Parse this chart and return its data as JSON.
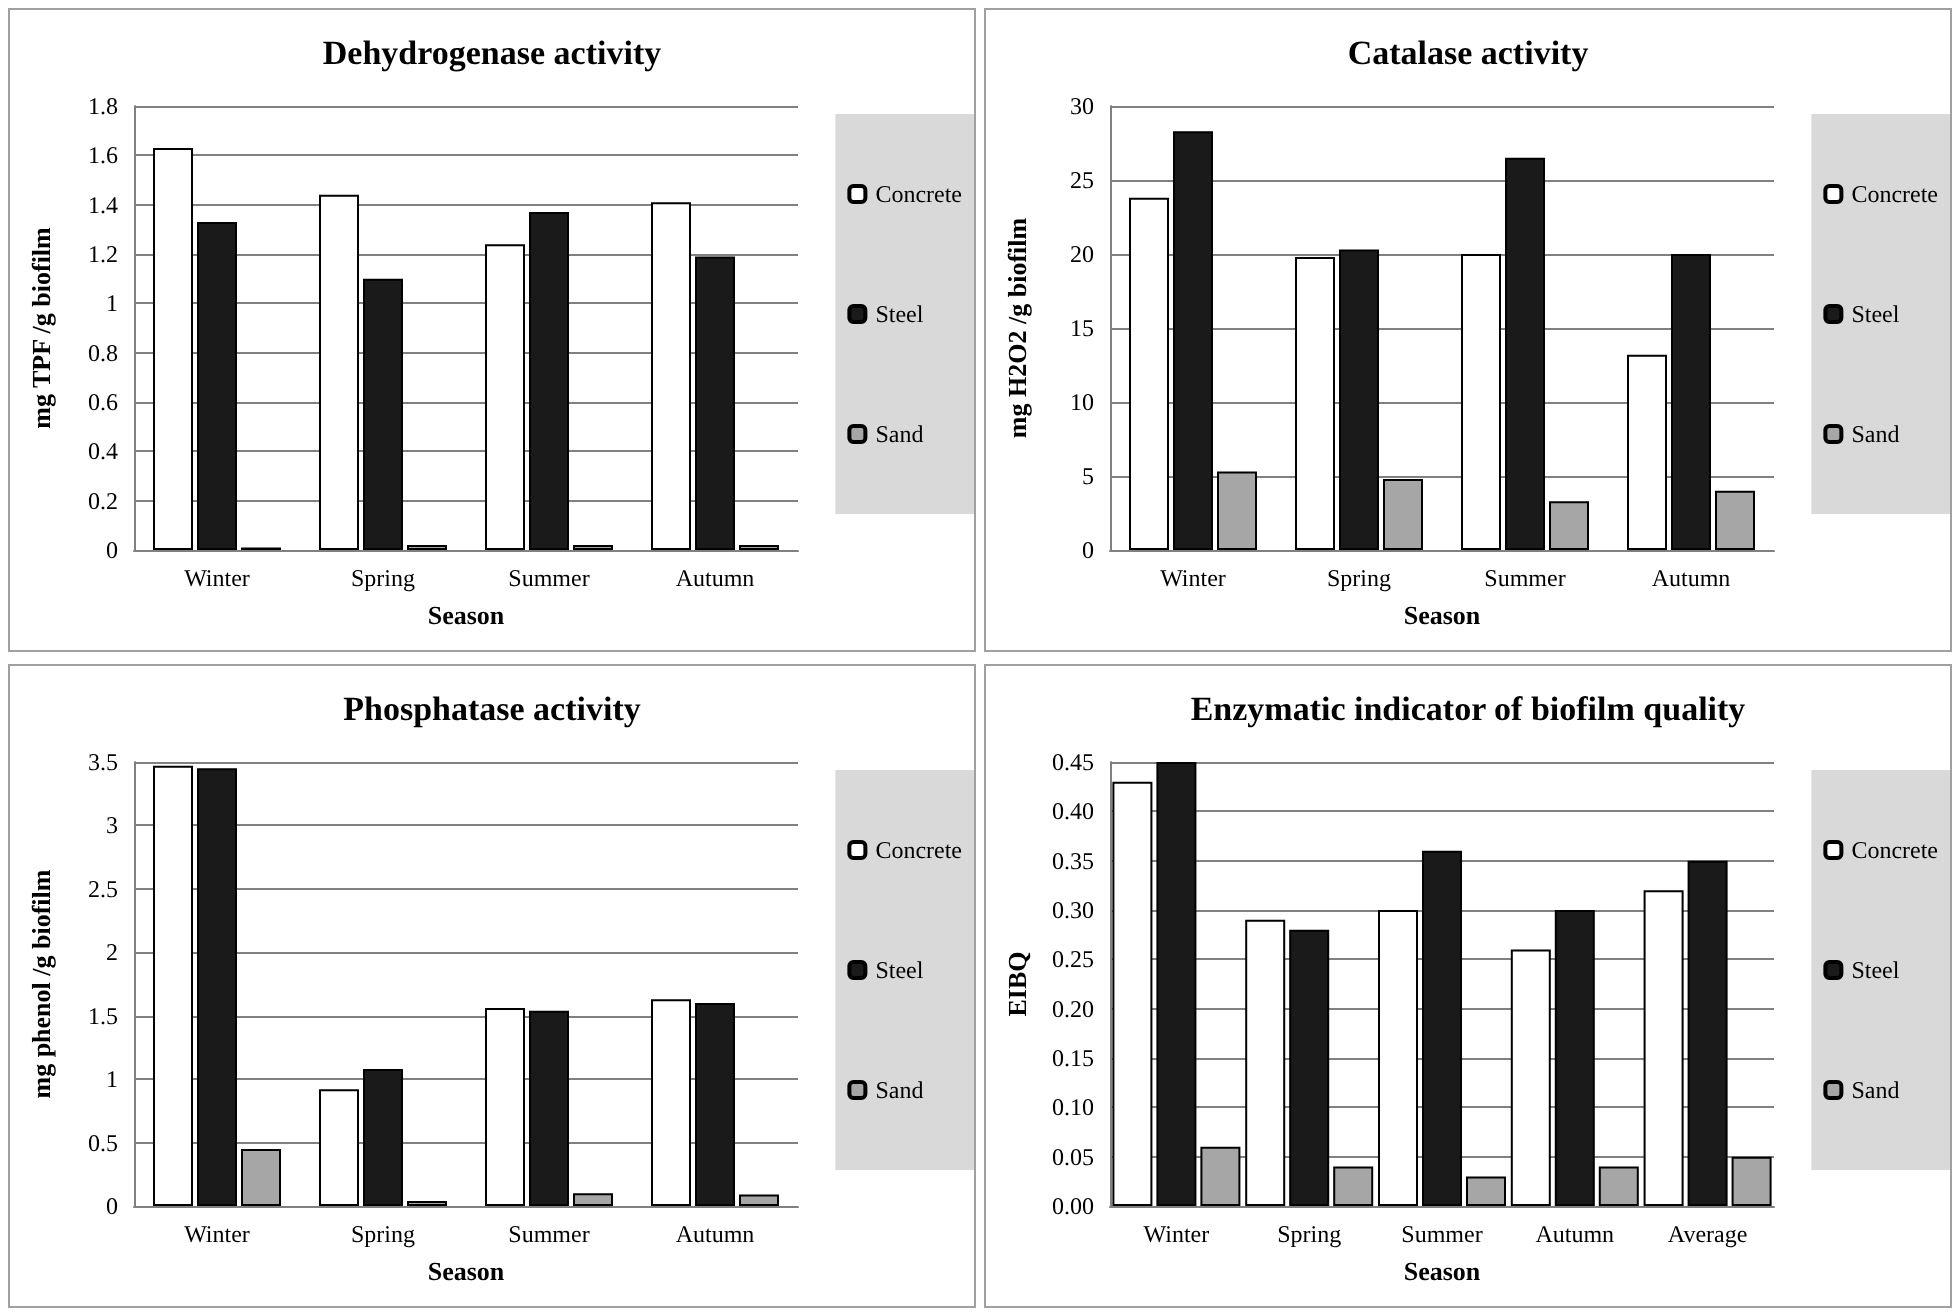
{
  "chart_data": [
    {
      "type": "bar",
      "title": "Dehydrogenase activity",
      "xlabel": "Season",
      "ylabel": "mg TPF /g biofilm",
      "categories": [
        "Winter",
        "Spring",
        "Summer",
        "Autumn"
      ],
      "series": [
        {
          "name": "Concrete",
          "color": "#ffffff",
          "values": [
            1.63,
            1.44,
            1.24,
            1.41
          ]
        },
        {
          "name": "Steel",
          "color": "#1a1a1a",
          "values": [
            1.33,
            1.1,
            1.37,
            1.19
          ]
        },
        {
          "name": "Sand",
          "color": "#a6a6a6",
          "values": [
            0.01,
            0.02,
            0.02,
            0.02
          ]
        }
      ],
      "ylim": [
        0,
        1.8
      ],
      "yticks": [
        0,
        0.2,
        0.4,
        0.6,
        0.8,
        1,
        1.2,
        1.4,
        1.6,
        1.8
      ],
      "grid": "y",
      "legend": "right"
    },
    {
      "type": "bar",
      "title": "Catalase activity",
      "xlabel": "Season",
      "ylabel": "mg H2O2 /g biofilm",
      "categories": [
        "Winter",
        "Spring",
        "Summer",
        "Autumn"
      ],
      "series": [
        {
          "name": "Concrete",
          "color": "#ffffff",
          "values": [
            23.8,
            19.8,
            20,
            13.2
          ]
        },
        {
          "name": "Steel",
          "color": "#1a1a1a",
          "values": [
            28.3,
            20.3,
            26.5,
            20
          ]
        },
        {
          "name": "Sand",
          "color": "#a6a6a6",
          "values": [
            5.3,
            4.8,
            3.3,
            4
          ]
        }
      ],
      "ylim": [
        0,
        30
      ],
      "yticks": [
        0,
        5,
        10,
        15,
        20,
        25,
        30
      ],
      "grid": "y",
      "legend": "right"
    },
    {
      "type": "bar",
      "title": "Phosphatase activity",
      "xlabel": "Season",
      "ylabel": "mg phenol /g biofilm",
      "categories": [
        "Winter",
        "Spring",
        "Summer",
        "Autumn"
      ],
      "series": [
        {
          "name": "Concrete",
          "color": "#ffffff",
          "values": [
            3.47,
            0.92,
            1.56,
            1.63
          ]
        },
        {
          "name": "Steel",
          "color": "#1a1a1a",
          "values": [
            3.45,
            1.08,
            1.54,
            1.6
          ]
        },
        {
          "name": "Sand",
          "color": "#a6a6a6",
          "values": [
            0.45,
            0.04,
            0.1,
            0.09
          ]
        }
      ],
      "ylim": [
        0,
        3.5
      ],
      "yticks": [
        0,
        0.5,
        1,
        1.5,
        2,
        2.5,
        3,
        3.5
      ],
      "grid": "y",
      "legend": "right"
    },
    {
      "type": "bar",
      "title": "Enzymatic indicator of biofilm quality",
      "xlabel": "Season",
      "ylabel": "EIBQ",
      "categories": [
        "Winter",
        "Spring",
        "Summer",
        "Autumn",
        "Average"
      ],
      "series": [
        {
          "name": "Concrete",
          "color": "#ffffff",
          "values": [
            0.43,
            0.29,
            0.3,
            0.26,
            0.32
          ]
        },
        {
          "name": "Steel",
          "color": "#1a1a1a",
          "values": [
            0.45,
            0.28,
            0.36,
            0.3,
            0.35
          ]
        },
        {
          "name": "Sand",
          "color": "#a6a6a6",
          "values": [
            0.06,
            0.04,
            0.03,
            0.04,
            0.05
          ]
        }
      ],
      "ylim": [
        0,
        0.45
      ],
      "yticks": [
        {
          "value": 0,
          "label": "0.00"
        },
        {
          "value": 0.05,
          "label": "0.05"
        },
        {
          "value": 0.1,
          "label": "0.10"
        },
        {
          "value": 0.15,
          "label": "0.15"
        },
        {
          "value": 0.2,
          "label": "0.20"
        },
        {
          "value": 0.25,
          "label": "0.25"
        },
        {
          "value": 0.3,
          "label": "0.30"
        },
        {
          "value": 0.35,
          "label": "0.35"
        },
        {
          "value": 0.4,
          "label": "0.40"
        },
        {
          "value": 0.45,
          "label": "0.45"
        }
      ],
      "grid": "y",
      "legend": "right"
    }
  ]
}
